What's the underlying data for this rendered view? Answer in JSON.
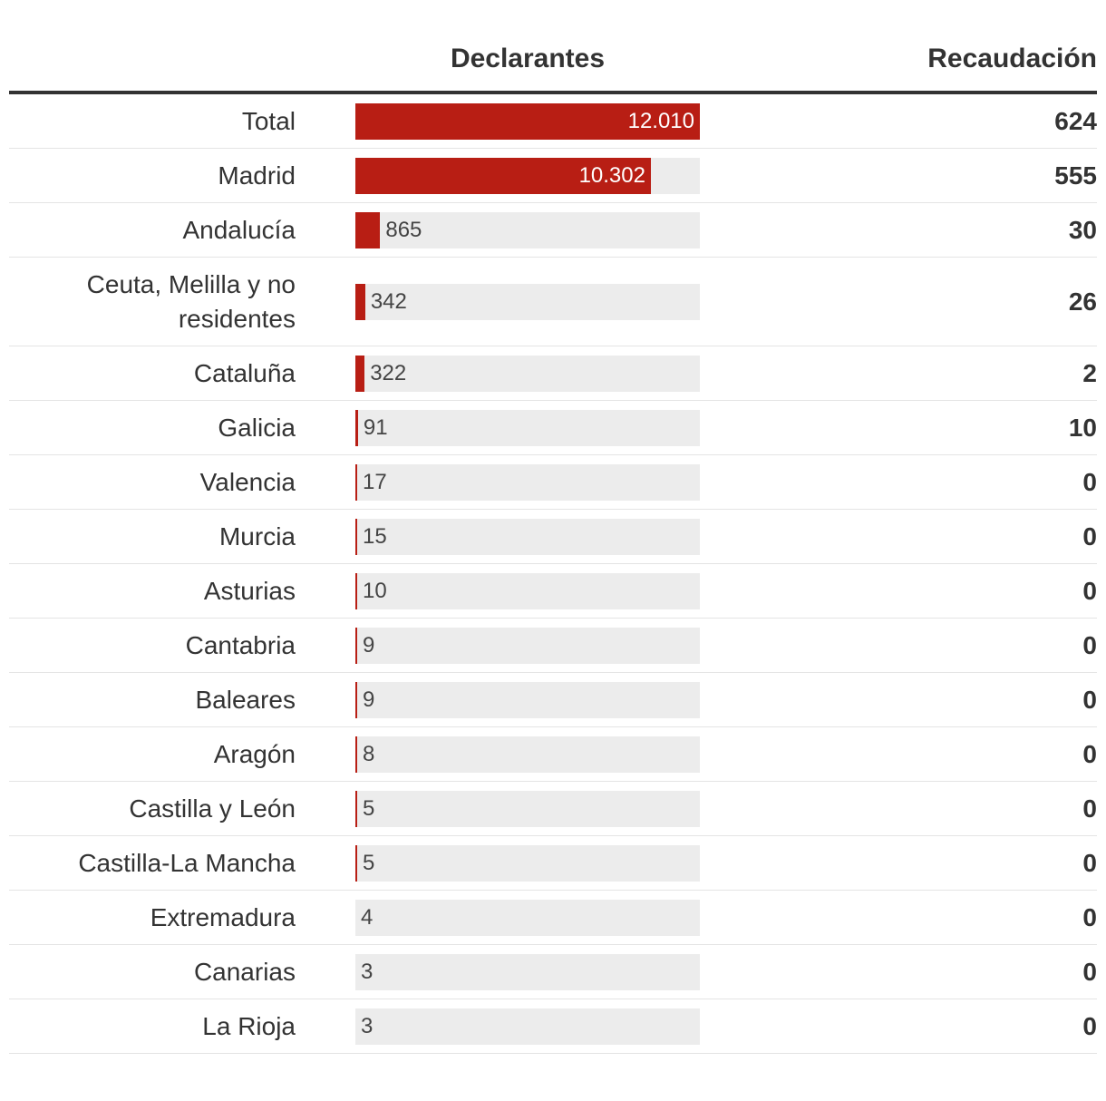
{
  "header": {
    "declarantes": "Declarantes",
    "recaudacion": "Recaudación"
  },
  "colors": {
    "bar": "#b81e14",
    "track": "#ececec",
    "text": "#333333"
  },
  "chart_data": {
    "type": "bar",
    "orientation": "horizontal",
    "max": 12010,
    "categories": [
      "Total",
      "Madrid",
      "Andalucía",
      "Ceuta, Melilla y no residentes",
      "Cataluña",
      "Galicia",
      "Valencia",
      "Murcia",
      "Asturias",
      "Cantabria",
      "Baleares",
      "Aragón",
      "Castilla y León",
      "Castilla-La Mancha",
      "Extremadura",
      "Canarias",
      "La Rioja"
    ],
    "series": [
      {
        "name": "Declarantes",
        "values": [
          12010,
          10302,
          865,
          342,
          322,
          91,
          17,
          15,
          10,
          9,
          9,
          8,
          5,
          5,
          4,
          3,
          3
        ],
        "labels": [
          "12.010",
          "10.302",
          "865",
          "342",
          "322",
          "91",
          "17",
          "15",
          "10",
          "9",
          "9",
          "8",
          "5",
          "5",
          "4",
          "3",
          "3"
        ]
      },
      {
        "name": "Recaudación",
        "values": [
          624,
          555,
          30,
          26,
          2,
          10,
          0,
          0,
          0,
          0,
          0,
          0,
          0,
          0,
          0,
          0,
          0
        ],
        "labels": [
          "624",
          "555",
          "30",
          "26",
          "2",
          "10",
          "0",
          "0",
          "0",
          "0",
          "0",
          "0",
          "0",
          "0",
          "0",
          "0",
          "0"
        ]
      }
    ]
  }
}
